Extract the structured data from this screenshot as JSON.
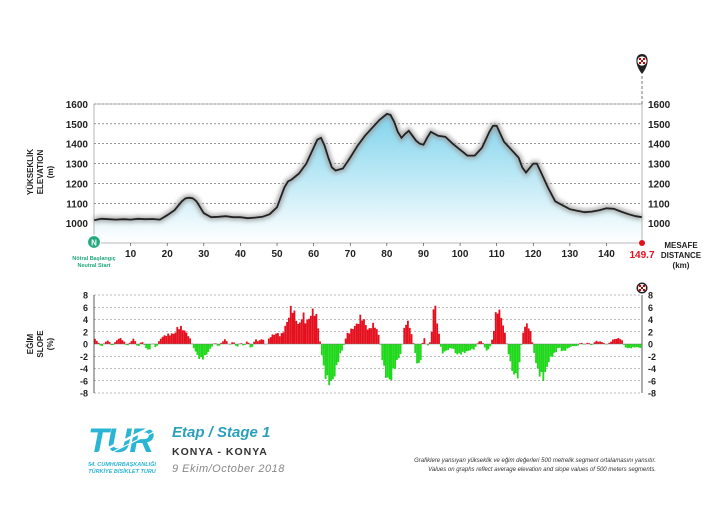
{
  "chart_data": [
    {
      "type": "area",
      "title": "",
      "ylabel_tr": "YÜKSEKLİK",
      "ylabel_en": "ELEVATION",
      "ylabel_unit": "(m)",
      "xlabel_tr": "MESAFE",
      "xlabel_en": "DISTANCE",
      "xlabel_unit": "(km)",
      "ylim": [
        900,
        1600
      ],
      "yticks": [
        1000,
        1100,
        1200,
        1300,
        1400,
        1500,
        1600
      ],
      "xlim": [
        0,
        149.7
      ],
      "xticks": [
        10,
        20,
        30,
        40,
        50,
        60,
        70,
        80,
        90,
        100,
        110,
        120,
        130,
        140
      ],
      "finish_km": "149.7",
      "start_marker": "N",
      "start_label_tr": "Nötral Başlangıç",
      "start_label_en": "Neutral Start",
      "x": [
        0,
        2,
        4,
        6,
        8,
        10,
        12,
        14,
        16,
        18,
        20,
        22,
        24,
        25,
        26,
        27,
        28,
        30,
        32,
        34,
        36,
        38,
        40,
        42,
        44,
        46,
        48,
        50,
        52,
        53,
        54,
        56,
        58,
        60,
        61,
        62,
        63,
        64,
        65,
        66,
        68,
        70,
        72,
        74,
        76,
        78,
        80,
        81,
        82,
        83,
        84,
        85,
        86,
        87,
        88,
        89,
        90,
        91,
        92,
        94,
        96,
        98,
        100,
        102,
        104,
        106,
        108,
        109,
        110,
        111,
        112,
        114,
        116,
        117,
        118,
        120,
        121,
        122,
        124,
        126,
        128,
        130,
        132,
        134,
        136,
        138,
        140,
        142,
        144,
        146,
        148,
        149.7
      ],
      "y": [
        1015,
        1022,
        1020,
        1018,
        1020,
        1018,
        1022,
        1020,
        1021,
        1018,
        1040,
        1065,
        1110,
        1125,
        1128,
        1125,
        1110,
        1050,
        1030,
        1032,
        1035,
        1030,
        1030,
        1025,
        1028,
        1032,
        1045,
        1080,
        1180,
        1210,
        1220,
        1250,
        1300,
        1380,
        1420,
        1430,
        1390,
        1330,
        1280,
        1265,
        1275,
        1330,
        1390,
        1440,
        1480,
        1520,
        1550,
        1545,
        1510,
        1460,
        1430,
        1450,
        1465,
        1440,
        1415,
        1400,
        1395,
        1430,
        1460,
        1440,
        1435,
        1400,
        1370,
        1340,
        1340,
        1380,
        1460,
        1490,
        1490,
        1450,
        1410,
        1370,
        1330,
        1280,
        1255,
        1300,
        1300,
        1260,
        1180,
        1110,
        1090,
        1070,
        1062,
        1055,
        1058,
        1065,
        1075,
        1072,
        1058,
        1045,
        1035,
        1030
      ]
    },
    {
      "type": "bar",
      "title": "",
      "ylabel_tr": "EĞİM",
      "ylabel_en": "SLOPE",
      "ylabel_unit": "(%)",
      "ylim": [
        -8,
        8
      ],
      "yticks": [
        8,
        6,
        4,
        2,
        0,
        -2,
        -4,
        -6,
        -8
      ],
      "bin_km": 0.5,
      "positive_color": "#e5101e",
      "negative_color": "#1fd81a",
      "slope_keyframes": {
        "x": [
          0,
          1,
          2,
          3,
          4,
          5,
          6,
          7,
          8,
          9,
          10,
          11,
          12,
          13,
          14,
          15,
          16,
          17,
          18,
          19,
          20,
          21,
          22,
          23,
          24,
          25,
          26,
          27,
          28,
          29,
          30,
          31,
          32,
          33,
          34,
          35,
          36,
          37,
          38,
          39,
          40,
          41,
          42,
          43,
          44,
          45,
          46,
          47,
          48,
          49,
          50,
          51,
          52,
          53,
          54,
          55,
          56,
          57,
          58,
          59,
          60,
          61,
          62,
          63,
          64,
          65,
          66,
          67,
          68,
          69,
          70,
          71,
          72,
          73,
          74,
          75,
          76,
          77,
          78,
          79,
          80,
          81,
          82,
          83,
          84,
          85,
          86,
          87,
          88,
          89,
          90,
          91,
          92,
          93,
          94,
          95,
          96,
          97,
          98,
          99,
          100,
          101,
          102,
          103,
          104,
          105,
          106,
          107,
          108,
          109,
          110,
          111,
          112,
          113,
          114,
          115,
          116,
          117,
          118,
          119,
          120,
          121,
          122,
          123,
          124,
          125,
          126,
          127,
          128,
          129,
          130,
          131,
          132,
          133,
          134,
          135,
          136,
          137,
          138,
          139,
          140,
          141,
          142,
          143,
          144,
          145,
          146,
          147,
          148,
          149
        ],
        "y": [
          1.0,
          0.4,
          -0.5,
          0.3,
          0.6,
          -0.4,
          0.5,
          1.0,
          0.6,
          -0.4,
          0.4,
          0.9,
          -0.6,
          0.5,
          -0.4,
          -1.2,
          0.3,
          -0.7,
          0.8,
          1.3,
          1.5,
          1.6,
          1.7,
          2.8,
          2.6,
          2.0,
          1.2,
          -0.3,
          -1.6,
          -2.5,
          -2.2,
          -1.5,
          -0.6,
          0.3,
          -0.5,
          0.4,
          0.8,
          -0.3,
          0.5,
          -0.6,
          0.3,
          -0.4,
          0.6,
          -0.9,
          0.8,
          0.4,
          1.0,
          -0.4,
          1.2,
          1.5,
          1.8,
          1.3,
          2.4,
          4.0,
          6.2,
          4.5,
          2.8,
          5.0,
          3.4,
          4.5,
          5.6,
          4.0,
          -0.8,
          -4.8,
          -6.1,
          -6.3,
          -4.5,
          -2.0,
          -0.7,
          1.5,
          2.1,
          2.8,
          3.3,
          4.6,
          3.5,
          2.1,
          3.2,
          2.8,
          1.0,
          -3.5,
          -5.6,
          -6.0,
          -4.0,
          -2.5,
          -1.3,
          3.6,
          3.4,
          1.0,
          -2.5,
          -3.8,
          1.5,
          -0.5,
          0.5,
          7.2,
          2.5,
          -1.5,
          -1.2,
          -0.8,
          -0.6,
          -1.7,
          -1.6,
          -1.4,
          -1.2,
          -0.9,
          -0.8,
          0.4,
          0.5,
          -1.0,
          -0.9,
          1.2,
          5.8,
          5.0,
          2.5,
          -0.7,
          -3.9,
          -5.2,
          -5.0,
          1.5,
          3.3,
          2.7,
          -0.5,
          -4.0,
          -5.1,
          -5.5,
          -3.1,
          -2.0,
          -1.5,
          -0.4,
          -1.3,
          -0.9,
          -0.5,
          -0.3,
          -0.4,
          0.3,
          -0.2,
          0.3,
          -0.3,
          0.5,
          0.4,
          0.3,
          -0.2,
          0.3,
          0.8,
          0.9,
          0.9,
          -0.5,
          -0.7,
          -0.6,
          -0.5,
          -0.6
        ]
      }
    }
  ],
  "brand": {
    "logo_edition": "54. CUMHURBAŞKANLIĞI",
    "logo_name": "TÜRKİYE BİSİKLET TURU"
  },
  "stage_info": {
    "stage_label": "Etap / Stage 1",
    "route": "KONYA - KONYA",
    "date": "9 Ekim/October 2018"
  },
  "footnote": {
    "line1": "Grafiklere yansıyan yükseklik ve eğim değerleri 500 metrelik segment ortalamasını yansıtır.",
    "line2": "Values on graphs reflect average elevation and slope values of 500 meters segments."
  },
  "colors": {
    "area_top": "#7fd3ec",
    "area_bottom": "#ffffff",
    "line": "#222222",
    "start_circle": "#22a87b",
    "finish": "#e5101e",
    "brand_blue": "#2bb5d4",
    "stage_text": "#2b9fbe",
    "text_dark": "#333333"
  },
  "icons": {
    "start": "neutral-start-icon",
    "finish": "finish-flag-icon"
  }
}
